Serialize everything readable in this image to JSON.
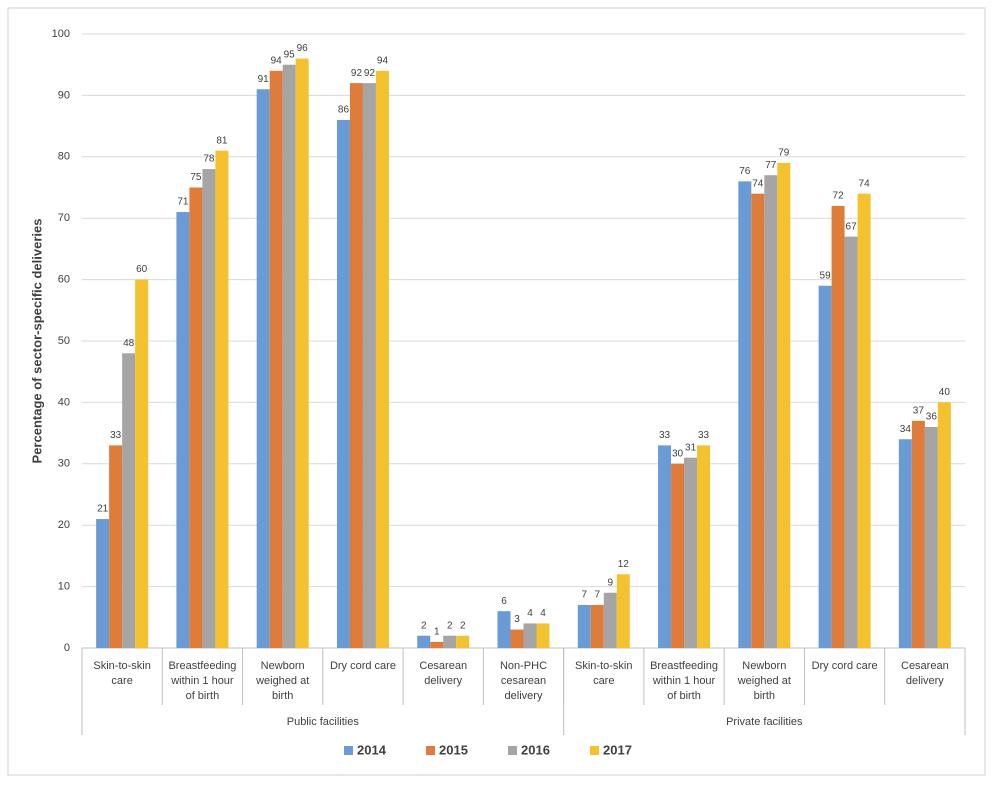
{
  "chart_data": {
    "type": "bar",
    "y_label": "Percentage of sector-specific deliveries",
    "groups": [
      {
        "name": "Public facilities",
        "categories": [
          [
            "Skin-to-skin",
            "care"
          ],
          [
            "Breastfeeding",
            "within 1 hour",
            "of birth"
          ],
          [
            "Newborn",
            "weighed at",
            "birth"
          ],
          [
            "Dry cord care"
          ],
          [
            "Cesarean",
            "delivery"
          ],
          [
            "Non-PHC",
            "cesarean",
            "delivery"
          ]
        ]
      },
      {
        "name": "Private facilities",
        "categories": [
          [
            "Skin-to-skin",
            "care"
          ],
          [
            "Breastfeeding",
            "within 1 hour",
            "of birth"
          ],
          [
            "Newborn",
            "weighed at",
            "birth"
          ],
          [
            "Dry cord care"
          ],
          [
            "Cesarean",
            "delivery"
          ]
        ]
      }
    ],
    "series": [
      {
        "name": "2014",
        "color": "#6b9bd5",
        "values": [
          21,
          71,
          91,
          86,
          2,
          6,
          7,
          33,
          76,
          59,
          34
        ]
      },
      {
        "name": "2015",
        "color": "#e07c3a",
        "values": [
          33,
          75,
          94,
          92,
          1,
          3,
          7,
          30,
          74,
          72,
          37
        ]
      },
      {
        "name": "2016",
        "color": "#a5a5a5",
        "values": [
          48,
          78,
          95,
          92,
          2,
          4,
          9,
          31,
          77,
          67,
          36
        ]
      },
      {
        "name": "2017",
        "color": "#f4c12f",
        "values": [
          60,
          81,
          96,
          94,
          2,
          4,
          12,
          33,
          79,
          74,
          40
        ]
      }
    ],
    "ylim": [
      0,
      100
    ],
    "yticks": [
      0,
      10,
      20,
      30,
      40,
      50,
      60,
      70,
      80,
      90,
      100
    ],
    "grid": true,
    "legend": "bottom"
  }
}
